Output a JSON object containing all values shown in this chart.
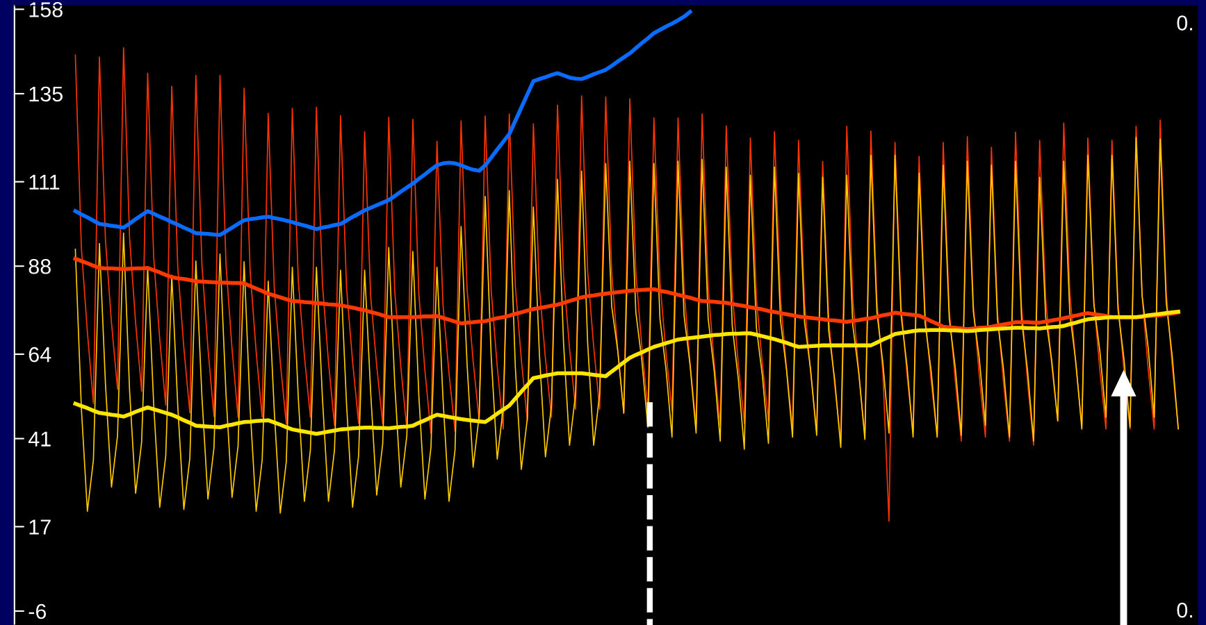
{
  "chart_data": {
    "type": "line",
    "categories": [
      null,
      null,
      null,
      null,
      null,
      null,
      null,
      null,
      null,
      null,
      null,
      null,
      null,
      null,
      null,
      null,
      null,
      null,
      null,
      null,
      null,
      null,
      null,
      null,
      null,
      null,
      null,
      null,
      null,
      null,
      null,
      null,
      null,
      null,
      null,
      null,
      null,
      null,
      null,
      null,
      null,
      null,
      null,
      null,
      null,
      null,
      null,
      null,
      null,
      null,
      null,
      null,
      null,
      null,
      null,
      null,
      null,
      null,
      null,
      null,
      null,
      null,
      null,
      null,
      null,
      null,
      null,
      null,
      null,
      null,
      null,
      null,
      null,
      null,
      null,
      null,
      null,
      null,
      null,
      null,
      null,
      null,
      null,
      null,
      null,
      null,
      null,
      null,
      null,
      null,
      null,
      null,
      null,
      null,
      null,
      null,
      null,
      null,
      null,
      null,
      null,
      null,
      null,
      null,
      null,
      null,
      null,
      null,
      null,
      null,
      null,
      null,
      null,
      null,
      null,
      null,
      null,
      null,
      null,
      null,
      null,
      null,
      null,
      null,
      null,
      null,
      null,
      null,
      null,
      null,
      null,
      null,
      null,
      null,
      null,
      null,
      null,
      null,
      null,
      null,
      null,
      null,
      null,
      null,
      null,
      null,
      null,
      null,
      null,
      null,
      null,
      null,
      null,
      null,
      null,
      null,
      null,
      null,
      null,
      null,
      null,
      null,
      null,
      null,
      null,
      null,
      null,
      null,
      null,
      null,
      null,
      null,
      null,
      null,
      null,
      null,
      null,
      null,
      null,
      null,
      null,
      null,
      null,
      null
    ],
    "ylim": [
      -9.8,
      159
    ],
    "yticks": [
      158,
      135,
      111,
      88,
      64,
      41,
      17,
      -6
    ],
    "annotations": [
      "0.",
      "0."
    ],
    "grid": false,
    "legend": false,
    "marker": "none",
    "line_style": "solid",
    "series": [
      {
        "color": "#ff3300",
        "values": [
          145.5,
          93,
          70,
          50.6,
          145,
          95,
          72.5,
          54.4,
          147.5,
          95.7,
          72.6,
          53.9,
          140.6,
          90.4,
          68.2,
          50.1,
          137,
          87.5,
          65.8,
          48,
          140,
          88.5,
          65.6,
          47,
          140,
          88.4,
          65.4,
          46.8,
          136.5,
          86.7,
          64.7,
          46.8,
          129.6,
          82.3,
          61.9,
          45,
          131,
          83.9,
          63.6,
          46.8,
          131.3,
          83,
          61.9,
          44.6,
          129,
          82.1,
          62,
          45.2,
          124.6,
          79.8,
          60.9,
          45,
          128.6,
          81.1,
          60.6,
          43.6,
          128,
          80.3,
          59.6,
          42.5,
          122,
          77.5,
          58.8,
          43,
          127.6,
          81.7,
          62.2,
          45.8,
          128.9,
          81.3,
          60.7,
          43.6,
          129.5,
          82.7,
          62.5,
          45.8,
          126.8,
          81.8,
          62.8,
          46.8,
          131.9,
          85.5,
          65.6,
          49,
          134.4,
          86.7,
          66.1,
          49,
          134.1,
          86.1,
          65.2,
          48,
          133.6,
          86.3,
          65.9,
          49,
          128.4,
          83.5,
          64.5,
          48.5,
          128.4,
          81.5,
          61.4,
          44.6,
          129.5,
          82.1,
          61.6,
          44.6,
          126.2,
          80.7,
          61.4,
          45.2,
          122.9,
          79.4,
          61.2,
          45.8,
          124.6,
          79.3,
          60.1,
          44,
          122.3,
          77.7,
          58.9,
          43,
          116.5,
          73.4,
          55.5,
          40.3,
          126.1,
          79,
          58.7,
          41.9,
          124.8,
          78.4,
          58.6,
          18.5,
          121.7,
          77.1,
          58.3,
          42.5,
          117.9,
          74.7,
          56.7,
          41.4,
          121.7,
          76,
          56.6,
          40.3,
          123.3,
          77.4,
          57.8,
          41.4,
          120.4,
          75.4,
          56.3,
          40.3,
          124.5,
          76.9,
          56.3,
          39.2,
          122.3,
          79.1,
          61.1,
          45.8,
          127,
          80.8,
          61.1,
          44.6,
          122.9,
          78.3,
          59.5,
          43.6,
          122.3,
          78,
          59.3,
          43.6,
          126.1,
          79.9,
          60.1,
          43.6,
          127.8,
          80.9,
          60.8,
          44
        ]
      },
      {
        "color": "#ffcc00",
        "values": [
          92.6,
          49.2,
          21.2,
          35.2,
          94.2,
          55.8,
          27.8,
          41.8,
          97,
          54.1,
          26.1,
          40.1,
          87.7,
          50.3,
          22.3,
          36.3,
          85.5,
          49.7,
          21.7,
          35.7,
          89.4,
          52.5,
          24.5,
          38.5,
          91.3,
          53,
          25,
          39,
          89.2,
          49.2,
          21.2,
          35.2,
          83.9,
          48.7,
          20.7,
          34.7,
          87.7,
          51.9,
          23.9,
          37.9,
          87.7,
          51.9,
          23.9,
          37.9,
          86.9,
          50.3,
          22.3,
          36.3,
          86.9,
          53.6,
          25.6,
          39.6,
          93.1,
          55.8,
          27.8,
          41.8,
          92,
          52.5,
          24.5,
          38.5,
          87.7,
          51.9,
          23.9,
          37.9,
          98.8,
          61.2,
          33.2,
          47.2,
          107,
          63.4,
          35.4,
          49.4,
          108.6,
          60.6,
          32.6,
          46.6,
          104.1,
          64,
          36,
          50,
          111.7,
          67.2,
          39.2,
          53.2,
          113.9,
          67.2,
          39.2,
          53.2,
          116,
          77,
          64.9,
          47.9,
          116.6,
          75.4,
          62.2,
          44.1,
          116,
          73.7,
          60,
          41.4,
          116.6,
          74.6,
          61,
          42.5,
          117.1,
          73.7,
          59.5,
          40.3,
          115,
          71.6,
          57.3,
          38.1,
          112.8,
          71.3,
          58,
          39.7,
          115,
          73.2,
          59.8,
          41.4,
          113.3,
          72.6,
          59.8,
          41.9,
          112.2,
          70.4,
          57,
          38.6,
          112.8,
          71.8,
          58.8,
          40.8,
          118.2,
          75.4,
          61.4,
          42.5,
          118.2,
          74.8,
          60.6,
          41.4,
          113.3,
          72.4,
          59.4,
          41.4,
          115.5,
          73.7,
          60.3,
          41.9,
          116.6,
          75.6,
          62.6,
          44.6,
          115.5,
          73.5,
          59.9,
          41.4,
          116.6,
          73.5,
          59.4,
          40.3,
          112.2,
          74,
          62.4,
          45.8,
          116.6,
          75.1,
          61.9,
          43.6,
          118.2,
          77.5,
          64.7,
          46.8,
          118.2,
          76.2,
          62.6,
          44.1,
          123.1,
          80,
          65.9,
          46.8,
          122.6,
          78.1,
          63.4,
          43.6
        ]
      },
      {
        "color": "#0a6cff",
        "values": [
          103,
          102.1,
          101.3,
          100.4,
          99.5,
          99.3,
          99,
          98.8,
          98.5,
          99.6,
          100.8,
          101.9,
          103,
          102.3,
          101.5,
          100.8,
          100,
          99.3,
          98.5,
          97.8,
          97,
          96.9,
          96.8,
          96.6,
          96.5,
          97.5,
          98.5,
          99.5,
          100.5,
          100.8,
          101,
          101.3,
          101.5,
          101.1,
          100.8,
          100.4,
          100,
          99.5,
          99.1,
          98.6,
          98.1,
          98.5,
          98.8,
          99.2,
          99.5,
          100.4,
          101.4,
          102.3,
          103.2,
          103.9,
          104.6,
          105.3,
          106,
          107.1,
          108.3,
          109.4,
          110.5,
          111.8,
          113,
          114.3,
          115.5,
          116,
          116.2,
          116,
          115.5,
          114.8,
          114.3,
          114,
          115.5,
          117.6,
          119.8,
          121.9,
          124,
          127.6,
          131.2,
          134.8,
          138.4,
          139,
          139.5,
          140.1,
          140.6,
          140,
          139.4,
          139.1,
          139,
          139.6,
          140.3,
          140.9,
          141.5,
          142.6,
          143.8,
          144.9,
          146,
          147.4,
          148.8,
          150.1,
          151.5,
          152.4,
          153.3,
          154.1,
          155,
          156,
          157.3,
          null,
          null,
          null,
          null,
          null,
          null,
          null,
          null,
          null,
          null,
          null,
          null,
          null,
          null,
          null,
          null,
          null,
          null,
          null,
          null,
          null,
          null,
          null,
          null,
          null,
          null,
          null,
          null,
          null,
          null,
          null,
          null,
          null,
          null,
          null,
          null,
          null,
          null,
          null,
          null,
          null,
          null,
          null,
          null,
          null,
          null,
          null,
          null,
          null,
          null,
          null,
          null,
          null,
          null,
          null,
          null,
          null,
          null,
          null,
          null,
          null,
          null,
          null,
          null,
          null,
          null,
          null,
          null,
          null,
          null,
          null,
          null,
          null,
          null,
          null,
          null,
          null,
          null,
          null,
          null,
          null
        ]
      },
      {
        "color": "#ff3a00",
        "values": [
          90,
          89.4,
          88.8,
          88.1,
          87.5,
          87.4,
          87.4,
          87.3,
          87.2,
          87.3,
          87.4,
          87.4,
          87.5,
          86.9,
          86.3,
          85.6,
          85,
          84.7,
          84.5,
          84.2,
          83.9,
          83.8,
          83.7,
          83.6,
          83.5,
          83.5,
          83.4,
          83.4,
          83.3,
          82.6,
          81.9,
          81.2,
          80.5,
          80,
          79.5,
          79,
          78.5,
          78.4,
          78.2,
          78.1,
          77.9,
          77.8,
          77.6,
          77.5,
          77.3,
          77,
          76.7,
          76.3,
          76,
          75.5,
          75.1,
          74.6,
          74.1,
          74.1,
          74.1,
          74.1,
          74.1,
          74.2,
          74.3,
          74.3,
          74.4,
          73.9,
          73.4,
          72.9,
          72.4,
          72.6,
          72.7,
          72.9,
          73,
          73.4,
          73.8,
          74.1,
          74.5,
          75,
          75.4,
          75.9,
          76.3,
          76.6,
          76.9,
          77.2,
          77.5,
          78,
          78.5,
          79,
          79.5,
          79.8,
          80,
          80.3,
          80.5,
          80.7,
          80.9,
          81.1,
          81.3,
          81.4,
          81.5,
          81.6,
          81.7,
          81.3,
          81,
          80.6,
          80.2,
          79.8,
          79.4,
          78.9,
          78.5,
          78.4,
          78.3,
          78.1,
          78,
          77.7,
          77.4,
          77.1,
          76.8,
          76.5,
          76.2,
          75.8,
          75.5,
          75.2,
          74.9,
          74.6,
          74.3,
          74.1,
          73.9,
          73.7,
          73.5,
          73.3,
          73.2,
          73,
          72.8,
          73.1,
          73.3,
          73.6,
          73.8,
          74.2,
          74.6,
          74.9,
          75.3,
          75.1,
          74.9,
          74.7,
          74.5,
          73.8,
          73,
          72.3,
          71.5,
          71.3,
          71.2,
          71,
          70.8,
          71,
          71.2,
          71.3,
          71.5,
          71.8,
          72.1,
          72.4,
          72.7,
          72.7,
          72.7,
          72.6,
          72.6,
          72.9,
          73.2,
          73.5,
          73.8,
          74.2,
          74.5,
          74.9,
          75.2,
          74.9,
          74.7,
          74.4,
          74.1,
          74.1,
          74.1,
          74.1,
          74.1,
          74.2,
          74.4,
          74.5,
          74.6,
          74.9,
          75.1,
          75.4
        ]
      },
      {
        "color": "#ffe600",
        "values": [
          50.5,
          49.9,
          49.3,
          48.6,
          48,
          47.8,
          47.5,
          47.3,
          47,
          47.6,
          48.3,
          48.9,
          49.5,
          49,
          48.5,
          48,
          47.5,
          46.8,
          46,
          45.3,
          44.5,
          44.4,
          44.3,
          44.2,
          44.1,
          44.5,
          44.8,
          45.2,
          45.5,
          45.6,
          45.8,
          45.9,
          46,
          45.4,
          44.8,
          44.1,
          43.5,
          43.2,
          42.9,
          42.6,
          42.3,
          42.6,
          42.9,
          43.2,
          43.5,
          43.6,
          43.8,
          43.9,
          44,
          44,
          43.9,
          43.9,
          43.8,
          44,
          44.2,
          44.3,
          44.5,
          45.3,
          46,
          46.8,
          47.5,
          47.2,
          46.9,
          46.6,
          46.3,
          46.1,
          45.9,
          45.7,
          45.5,
          46.6,
          47.8,
          48.9,
          50,
          51.9,
          53.8,
          55.6,
          57.5,
          57.8,
          58.2,
          58.5,
          58.8,
          58.8,
          58.8,
          58.8,
          58.8,
          58.6,
          58.4,
          58.2,
          58,
          59.3,
          60.5,
          61.8,
          63,
          63.8,
          64.5,
          65.3,
          66,
          66.5,
          67,
          67.5,
          68,
          68.2,
          68.4,
          68.6,
          68.8,
          69,
          69.2,
          69.3,
          69.5,
          69.6,
          69.6,
          69.7,
          69.7,
          69.3,
          68.9,
          68.5,
          68.1,
          67.6,
          67.1,
          66.5,
          66,
          66.1,
          66.2,
          66.3,
          66.4,
          66.4,
          66.4,
          66.4,
          66.4,
          66.4,
          66.4,
          66.4,
          66.4,
          67.2,
          68,
          68.7,
          69.5,
          69.8,
          70,
          70.3,
          70.5,
          70.5,
          70.6,
          70.6,
          70.6,
          70.5,
          70.5,
          70.4,
          70.3,
          70.4,
          70.6,
          70.7,
          70.8,
          70.9,
          71,
          71.1,
          71.2,
          71.2,
          71.1,
          71.1,
          71,
          71.2,
          71.4,
          71.5,
          71.7,
          72.2,
          72.6,
          73.1,
          73.5,
          73.7,
          73.8,
          74,
          74.1,
          74.1,
          74.1,
          74.1,
          74.1,
          74.3,
          74.6,
          74.8,
          75,
          75.2,
          75.4,
          75.6
        ]
      }
    ]
  }
}
